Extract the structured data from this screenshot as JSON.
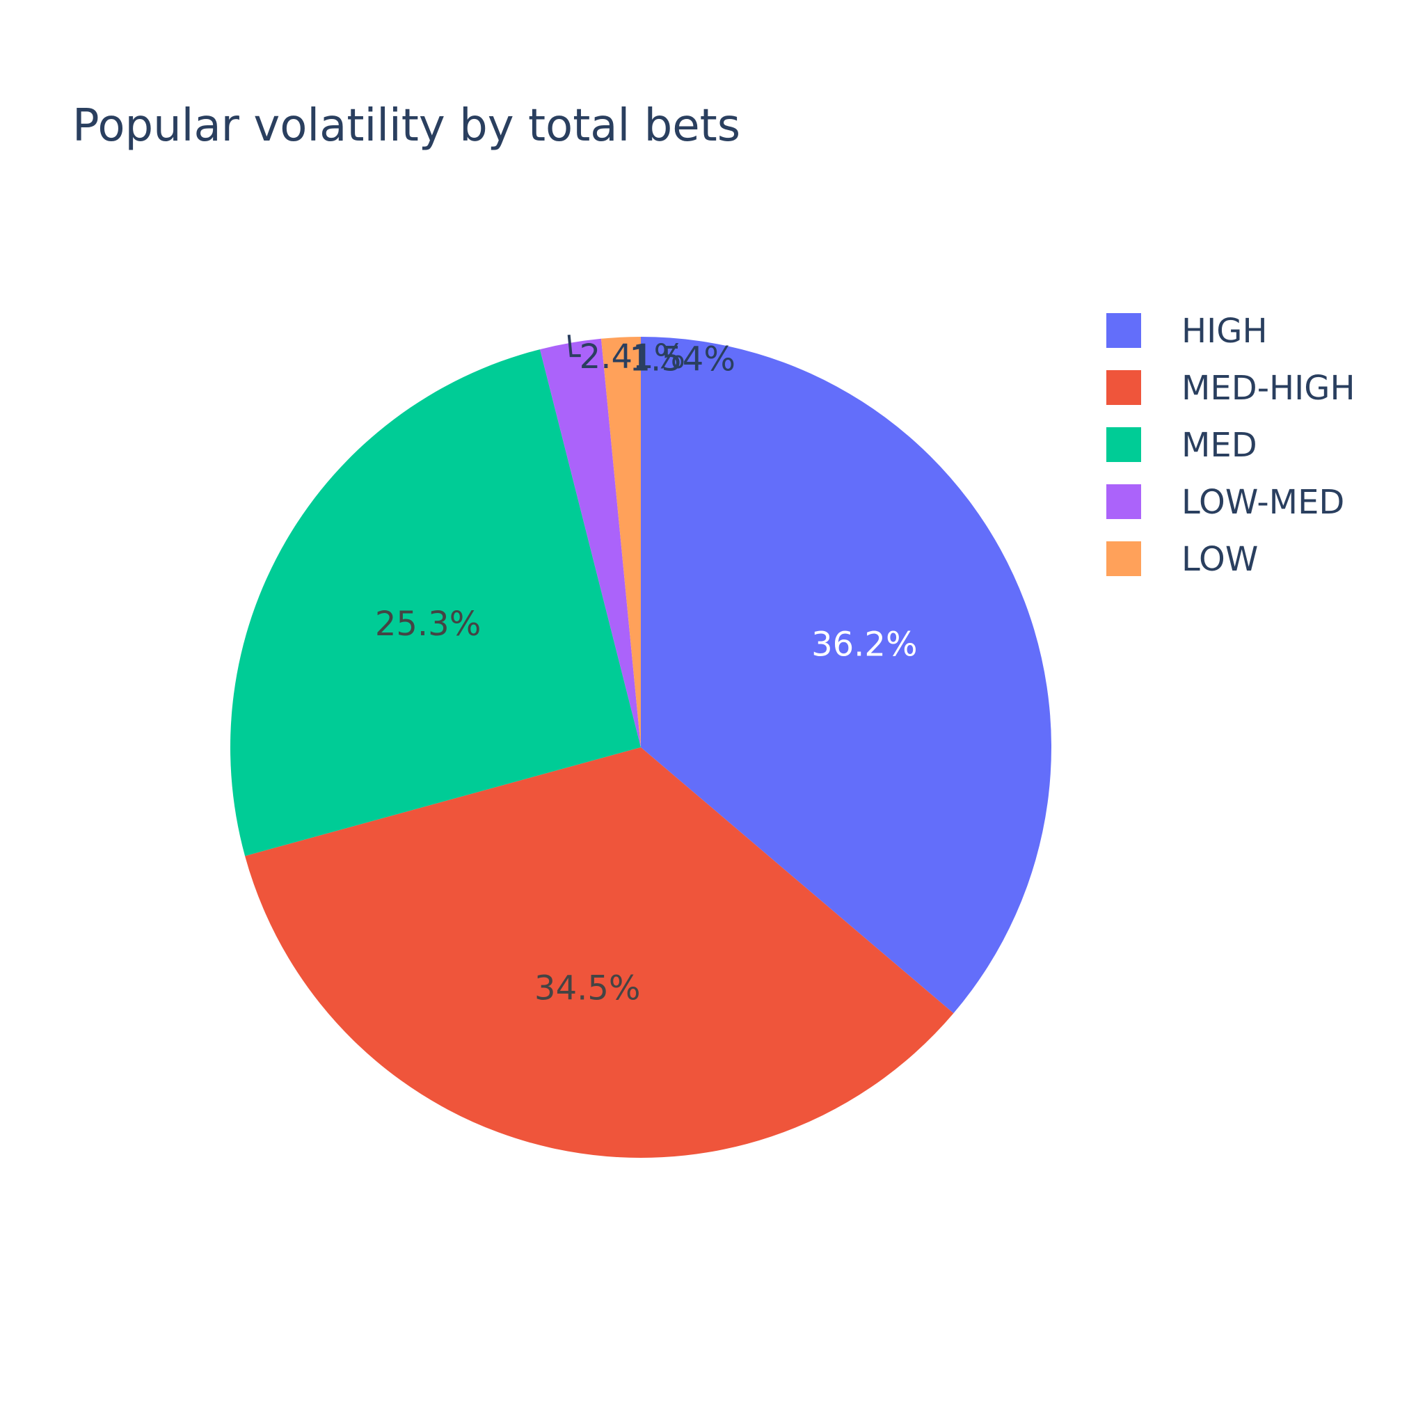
{
  "chart_data": {
    "type": "pie",
    "title": "Popular volatility by total bets",
    "categories": [
      "HIGH",
      "MED-HIGH",
      "MED",
      "LOW-MED",
      "LOW"
    ],
    "values": [
      36.2,
      34.5,
      25.3,
      2.41,
      1.54
    ],
    "labels": [
      "36.2%",
      "34.5%",
      "25.3%",
      "2.41%",
      "1.54%"
    ],
    "colors": [
      "#636efa",
      "#ef553b",
      "#00cc96",
      "#ab63fa",
      "#ffa15a"
    ],
    "label_colors": [
      "#ffffff",
      "#444444",
      "#444444",
      "#2a3f5f",
      "#2a3f5f"
    ],
    "label_position": [
      "inside",
      "inside",
      "inside",
      "outside",
      "outside"
    ],
    "direction": "clockwise",
    "legend": "right"
  }
}
